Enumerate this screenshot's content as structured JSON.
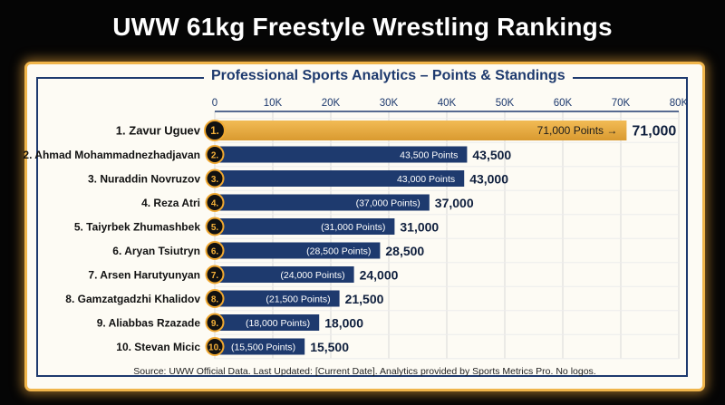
{
  "header": {
    "title": "UWW 61kg Freestyle Wrestling Rankings",
    "subtitle": "Professional Sports Analytics – Points & Standings"
  },
  "footer": {
    "source": "Source: UWW Official Data. Last Updated: [Current Date]. Analytics provided by Sports Metrics Pro. No logos."
  },
  "colors": {
    "top_bar": "#e3a53e",
    "bar": "#1e3a6e",
    "badge": "#111111",
    "badge_ring": "#f0a830",
    "grid": "#d9d9d9"
  },
  "chart_data": {
    "type": "bar",
    "orientation": "horizontal",
    "categories": [
      "1. Zavur Uguev",
      "2. Ahmad Mohammadnezhadjavan",
      "3. Nuraddin Novruzov",
      "4. Reza Atri",
      "5. Taiyrbek Zhumashbek",
      "6. Aryan Tsiutryn",
      "7. Arsen Harutyunyan",
      "8. Gamzatgadzhi Khalidov",
      "9. Aliabbas Rzazade",
      "10. Stevan Micic"
    ],
    "ranks": [
      "1.",
      "2.",
      "3.",
      "4.",
      "5.",
      "6.",
      "7.",
      "8.",
      "9.",
      "10."
    ],
    "values": [
      71000,
      43500,
      43000,
      37000,
      31000,
      28500,
      24000,
      21500,
      18000,
      15500
    ],
    "value_labels": [
      "71,000",
      "43,500",
      "43,000",
      "37,000",
      "31,000",
      "28,500",
      "24,000",
      "21,500",
      "18,000",
      "15,500"
    ],
    "inner_labels": [
      "71,000 Points →",
      "43,500 Points",
      "43,000 Points",
      "(37,000 Points)",
      "(31,000 Points)",
      "(28,500 Points)",
      "(24,000 Points)",
      "(21,500 Points)",
      "(18,000 Points)",
      "(15,500 Points)"
    ],
    "xlim": [
      0,
      80000
    ],
    "x_ticks": [
      0,
      10000,
      20000,
      30000,
      40000,
      50000,
      60000,
      70000,
      80000
    ],
    "x_tick_labels": [
      "0",
      "10K",
      "20K",
      "30K",
      "40K",
      "50K",
      "60K",
      "70K",
      "80K"
    ],
    "x_axis_position": "top",
    "grid": true
  }
}
